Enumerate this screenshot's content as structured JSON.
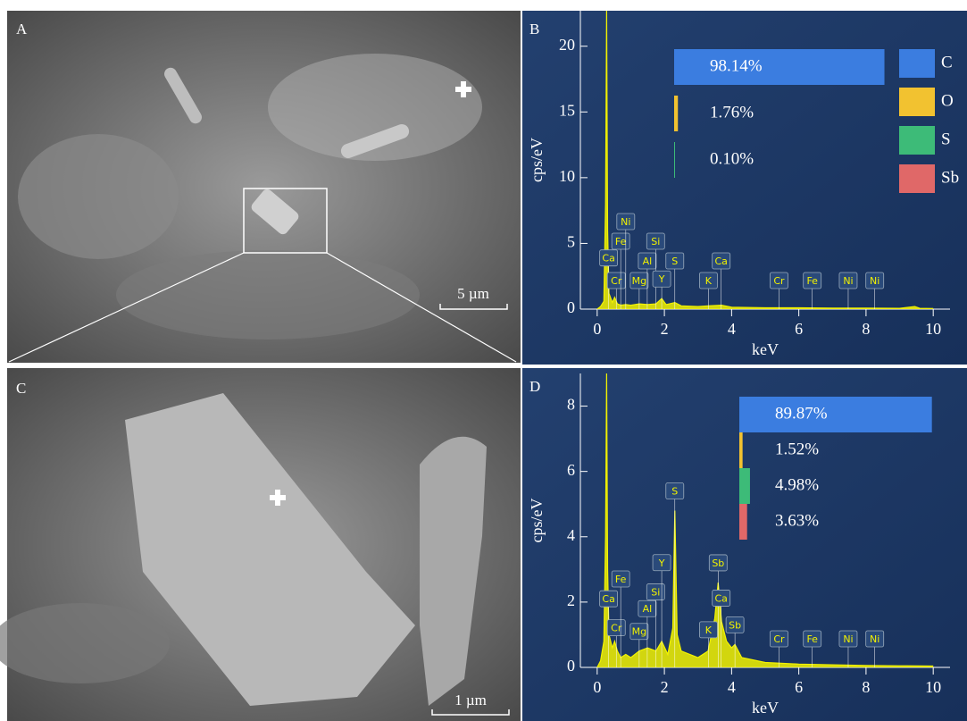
{
  "images": [
    {
      "label": "A",
      "scale_bar": "5 µm"
    },
    {
      "label": "C",
      "scale_bar": "1 µm"
    }
  ],
  "chart_data": [
    {
      "type": "line",
      "title": "B",
      "x_label": "keV",
      "y_label": "cps/eV",
      "color": "#f2f200",
      "xlim": [
        -0.5,
        10.5
      ],
      "xticks": [
        0,
        2,
        4,
        6,
        8,
        10
      ],
      "ylim": [
        0,
        22.7
      ],
      "yticks": [
        0,
        5,
        10,
        15,
        20
      ],
      "x": [
        0,
        0.1,
        0.2,
        0.25,
        0.28,
        0.31,
        0.35,
        0.45,
        0.52,
        0.6,
        0.7,
        0.85,
        1.0,
        1.25,
        1.5,
        1.75,
        1.92,
        2.05,
        2.31,
        2.5,
        3.0,
        3.3,
        3.7,
        4.0,
        5.0,
        6.0,
        7.0,
        8.0,
        9.0,
        9.45,
        9.6,
        10.0
      ],
      "values": [
        0,
        0.2,
        0.6,
        8,
        22.7,
        6,
        1.2,
        0.5,
        0.9,
        0.4,
        0.3,
        0.35,
        0.3,
        0.4,
        0.35,
        0.4,
        0.8,
        0.35,
        0.5,
        0.25,
        0.2,
        0.25,
        0.3,
        0.15,
        0.1,
        0.1,
        0.08,
        0.08,
        0.06,
        0.2,
        0.06,
        0.05
      ],
      "peaks": [
        {
          "label": "Ca",
          "x": 0.34
        },
        {
          "label": "Cr",
          "x": 0.57
        },
        {
          "label": "Fe",
          "x": 0.7
        },
        {
          "label": "Ni",
          "x": 0.85
        },
        {
          "label": "Mg",
          "x": 1.25
        },
        {
          "label": "Al",
          "x": 1.49
        },
        {
          "label": "Si",
          "x": 1.74
        },
        {
          "label": "Y",
          "x": 1.92
        },
        {
          "label": "S",
          "x": 2.31
        },
        {
          "label": "K",
          "x": 3.31
        },
        {
          "label": "Ca",
          "x": 3.69
        },
        {
          "label": "Cr",
          "x": 5.41
        },
        {
          "label": "Fe",
          "x": 6.4
        },
        {
          "label": "Ni",
          "x": 7.47
        },
        {
          "label": "Ni",
          "x": 8.26
        }
      ],
      "composition": {
        "categories": [
          "C",
          "O",
          "S",
          "Sb"
        ],
        "colors": [
          "#3b7de0",
          "#f2c230",
          "#3dbb78",
          "#e06868"
        ],
        "values": [
          98.14,
          1.76,
          0.1,
          null
        ],
        "value_labels": [
          "98.14%",
          "1.76%",
          "0.10%",
          null
        ]
      }
    },
    {
      "type": "line",
      "title": "D",
      "x_label": "keV",
      "y_label": "cps/eV",
      "color": "#f2f200",
      "xlim": [
        -0.5,
        10.5
      ],
      "xticks": [
        0,
        2,
        4,
        6,
        8,
        10
      ],
      "ylim": [
        0,
        9
      ],
      "yticks": [
        0,
        2,
        4,
        6,
        8
      ],
      "x": [
        0,
        0.1,
        0.2,
        0.25,
        0.28,
        0.31,
        0.35,
        0.45,
        0.52,
        0.6,
        0.7,
        0.85,
        1.0,
        1.25,
        1.5,
        1.75,
        1.92,
        2.1,
        2.25,
        2.31,
        2.38,
        2.5,
        3.0,
        3.3,
        3.5,
        3.6,
        3.7,
        3.85,
        4.0,
        4.1,
        4.3,
        5.0,
        6.0,
        7.0,
        8.0,
        9.0,
        10.0
      ],
      "values": [
        0,
        0.2,
        0.8,
        4,
        9,
        3,
        1,
        0.6,
        0.8,
        0.5,
        0.3,
        0.4,
        0.3,
        0.5,
        0.6,
        0.5,
        0.8,
        0.4,
        1.2,
        4.8,
        1.0,
        0.5,
        0.3,
        0.5,
        1.5,
        2.6,
        1.4,
        0.8,
        0.6,
        0.7,
        0.3,
        0.15,
        0.1,
        0.08,
        0.06,
        0.05,
        0.04
      ],
      "peaks": [
        {
          "label": "Ca",
          "x": 0.34
        },
        {
          "label": "Cr",
          "x": 0.57
        },
        {
          "label": "Fe",
          "x": 0.7
        },
        {
          "label": "Mg",
          "x": 1.25
        },
        {
          "label": "Al",
          "x": 1.49
        },
        {
          "label": "Si",
          "x": 1.74
        },
        {
          "label": "Y",
          "x": 1.92
        },
        {
          "label": "S",
          "x": 2.31
        },
        {
          "label": "K",
          "x": 3.31
        },
        {
          "label": "Sb",
          "x": 3.6
        },
        {
          "label": "Ca",
          "x": 3.69
        },
        {
          "label": "Sb",
          "x": 4.1
        },
        {
          "label": "Cr",
          "x": 5.41
        },
        {
          "label": "Fe",
          "x": 6.4
        },
        {
          "label": "Ni",
          "x": 7.47
        },
        {
          "label": "Ni",
          "x": 8.26
        }
      ],
      "composition": {
        "colors": [
          "#3b7de0",
          "#f2c230",
          "#3dbb78",
          "#e06868"
        ],
        "values": [
          89.87,
          1.52,
          4.98,
          3.63
        ],
        "value_labels": [
          "89.87%",
          "1.52%",
          "4.98%",
          "3.63%"
        ]
      }
    }
  ]
}
